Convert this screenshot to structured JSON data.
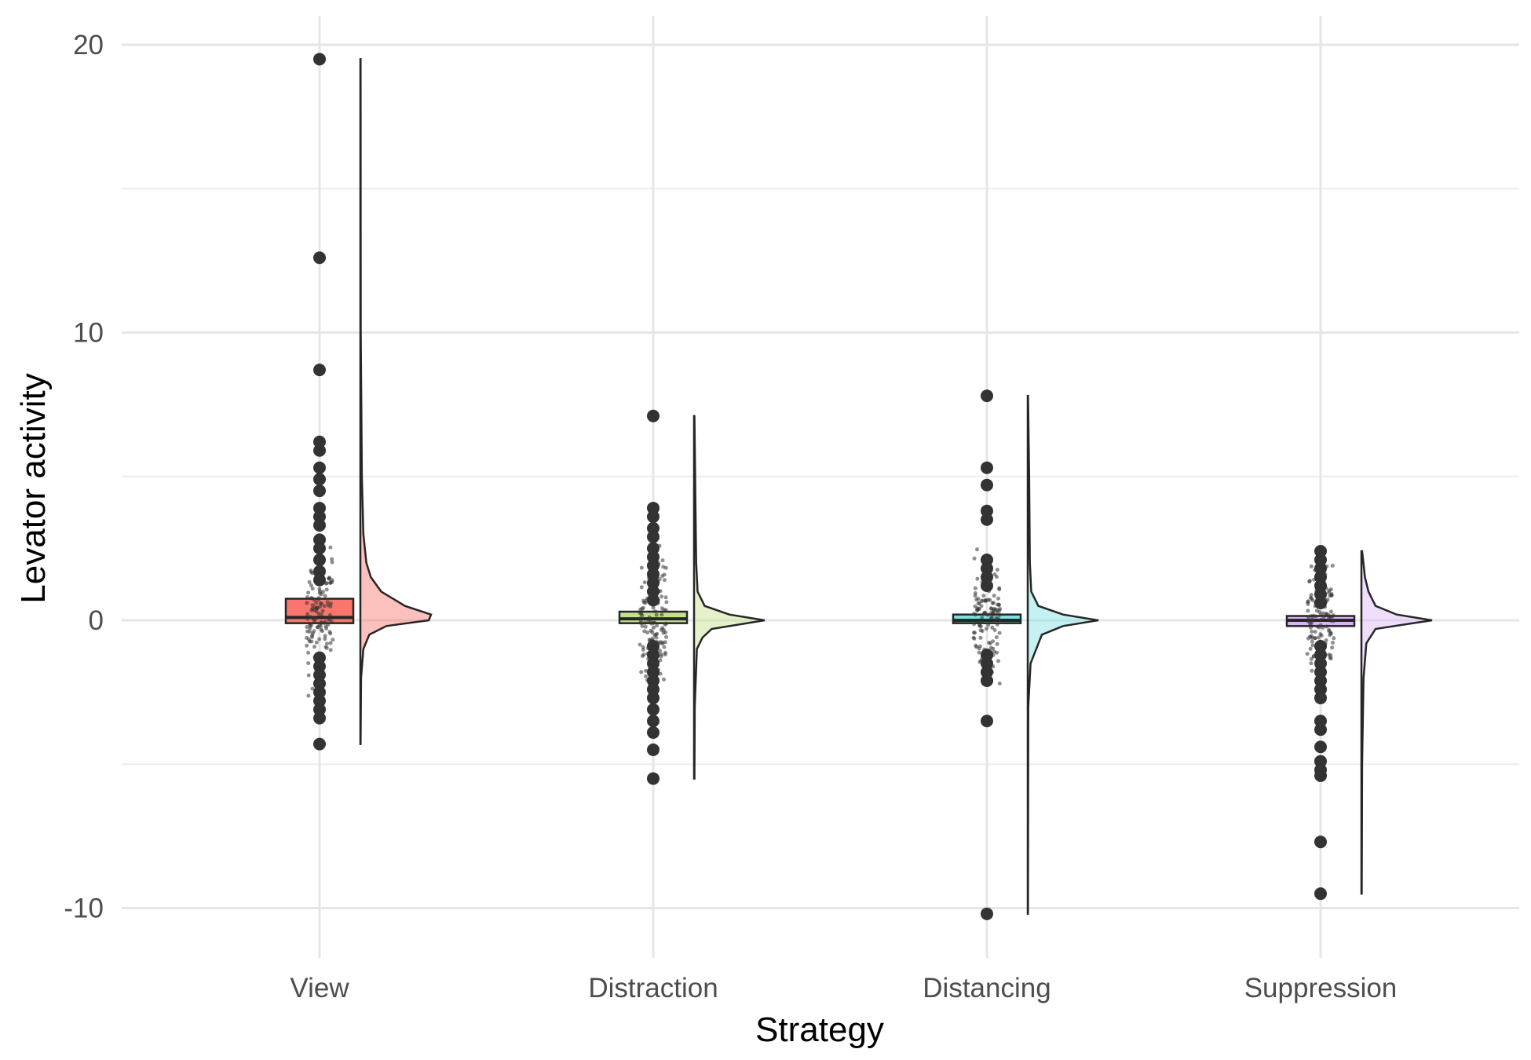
{
  "chart_data": {
    "type": "raincloud",
    "xlabel": "Strategy",
    "ylabel": "Levator activity",
    "ylim": [
      -11.6,
      20.6
    ],
    "y_ticks": [
      -10,
      0,
      10,
      20
    ],
    "y_tick_labels": [
      "-10",
      "0",
      "10",
      "20"
    ],
    "y_minor_ticks": [
      -5,
      5,
      15
    ],
    "grid": true,
    "legend": "none",
    "categories": [
      "View",
      "Distraction",
      "Distancing",
      "Suppression"
    ],
    "colors": {
      "View": "#f8766d",
      "Distraction": "#c3e18a",
      "Distancing": "#7fe0e3",
      "Suppression": "#dcb3f8"
    },
    "groups": [
      {
        "name": "View",
        "min": -4.3,
        "max": 19.5,
        "box": {
          "q1": -0.1,
          "median": 0.1,
          "q3": 0.75
        },
        "outliers": [
          19.5,
          12.6,
          8.7,
          6.2,
          5.9,
          5.3,
          4.9,
          4.5,
          3.9,
          3.6,
          3.3,
          2.8,
          2.5,
          2.1,
          1.7,
          1.4,
          -1.3,
          -1.6,
          -1.9,
          -2.2,
          -2.5,
          -2.8,
          -3.1,
          -3.4,
          -4.3
        ],
        "density": [
          [
            -4.3,
            0.003
          ],
          [
            -2,
            0.01
          ],
          [
            -1,
            0.04
          ],
          [
            -0.5,
            0.12
          ],
          [
            -0.2,
            0.35
          ],
          [
            0,
            0.92
          ],
          [
            0.2,
            0.95
          ],
          [
            0.5,
            0.6
          ],
          [
            1,
            0.28
          ],
          [
            1.5,
            0.14
          ],
          [
            2,
            0.08
          ],
          [
            3,
            0.04
          ],
          [
            5,
            0.02
          ],
          [
            10,
            0.005
          ],
          [
            19.5,
            0.003
          ]
        ]
      },
      {
        "name": "Distraction",
        "min": -5.5,
        "max": 7.1,
        "box": {
          "q1": -0.1,
          "median": 0.05,
          "q3": 0.3
        },
        "outliers": [
          7.1,
          3.9,
          3.6,
          3.2,
          2.9,
          2.5,
          2.2,
          1.9,
          1.6,
          1.3,
          1.0,
          0.7,
          -0.9,
          -1.2,
          -1.5,
          -1.8,
          -2.1,
          -2.4,
          -2.7,
          -3.1,
          -3.5,
          -3.9,
          -4.5,
          -5.5
        ],
        "density": [
          [
            -5.5,
            0.005
          ],
          [
            -3,
            0.01
          ],
          [
            -1,
            0.04
          ],
          [
            -0.6,
            0.12
          ],
          [
            -0.3,
            0.25
          ],
          [
            0,
            1.0
          ],
          [
            0.2,
            0.5
          ],
          [
            0.5,
            0.15
          ],
          [
            1,
            0.05
          ],
          [
            2,
            0.03
          ],
          [
            4,
            0.02
          ],
          [
            7.1,
            0.005
          ]
        ]
      },
      {
        "name": "Distancing",
        "min": -10.2,
        "max": 7.8,
        "box": {
          "q1": -0.1,
          "median": 0.0,
          "q3": 0.2
        },
        "outliers": [
          7.8,
          5.3,
          4.7,
          3.8,
          3.5,
          2.1,
          1.8,
          1.5,
          1.2,
          -1.2,
          -1.5,
          -1.8,
          -2.1,
          -3.5,
          -10.2
        ],
        "density": [
          [
            -10.2,
            0.003
          ],
          [
            -3,
            0.008
          ],
          [
            -1.5,
            0.04
          ],
          [
            -0.5,
            0.2
          ],
          [
            -0.2,
            0.5
          ],
          [
            0,
            1.0
          ],
          [
            0.2,
            0.5
          ],
          [
            0.5,
            0.15
          ],
          [
            1,
            0.05
          ],
          [
            2,
            0.03
          ],
          [
            5,
            0.02
          ],
          [
            7.8,
            0.004
          ]
        ]
      },
      {
        "name": "Suppression",
        "min": -9.5,
        "max": 2.4,
        "box": {
          "q1": -0.2,
          "median": 0.0,
          "q3": 0.15
        },
        "outliers": [
          2.4,
          2.1,
          1.8,
          1.5,
          1.2,
          0.9,
          0.6,
          -0.9,
          -1.2,
          -1.5,
          -1.8,
          -2.1,
          -2.4,
          -2.7,
          -3.5,
          -3.8,
          -4.4,
          -4.9,
          -5.2,
          -5.4,
          -7.7,
          -9.5
        ],
        "density": [
          [
            -9.5,
            0.004
          ],
          [
            -5,
            0.01
          ],
          [
            -2,
            0.03
          ],
          [
            -0.8,
            0.07
          ],
          [
            -0.3,
            0.2
          ],
          [
            0,
            1.0
          ],
          [
            0.2,
            0.5
          ],
          [
            0.5,
            0.2
          ],
          [
            1,
            0.1
          ],
          [
            1.5,
            0.05
          ],
          [
            2.4,
            0.01
          ]
        ]
      }
    ]
  }
}
